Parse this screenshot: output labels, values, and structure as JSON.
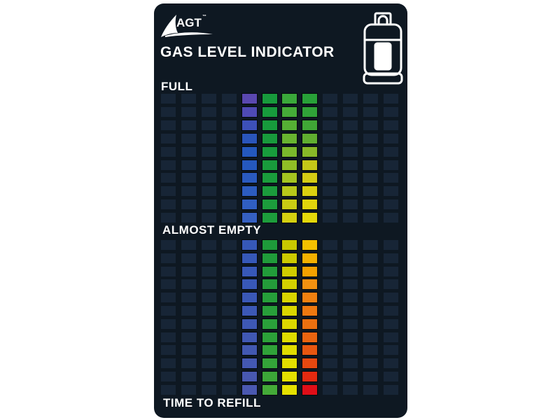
{
  "brand": {
    "name": "AGT",
    "trademark": "™"
  },
  "title": "GAS LEVEL INDICATOR",
  "labels": {
    "full": "FULL",
    "almost_empty": "ALMOST EMPTY",
    "time_to_refill": "TIME TO REFILL"
  },
  "icons": {
    "logo": "sail-logo",
    "cylinder": "gas-cylinder-icon"
  },
  "colors": {
    "card": "#0e1822",
    "empty_cell": "#172536",
    "text": "#ffffff"
  },
  "grid": {
    "columns": 12,
    "colored_columns": [
      5,
      6,
      7,
      8
    ],
    "upper_section": {
      "rows": 10,
      "column_colors": [
        [
          "#5a48b0",
          "#4f4ab5",
          "#3d50b8",
          "#2a55bb",
          "#2458bd",
          "#2558be",
          "#2a5abf",
          "#2c5cc0",
          "#305ec2",
          "#3560c2"
        ],
        [
          "#179a3c",
          "#179a3c",
          "#179a3c",
          "#189a3c",
          "#189b3c",
          "#199b3c",
          "#1a9c3c",
          "#1b9c3c",
          "#1c9c3c",
          "#1d9d3c"
        ],
        [
          "#3aa83a",
          "#45ac38",
          "#55b034",
          "#68b430",
          "#7ab82c",
          "#90be26",
          "#a4c420",
          "#b8c81a",
          "#c8cc14",
          "#d4d010"
        ],
        [
          "#28a038",
          "#30a238",
          "#40a636",
          "#60ae30",
          "#88b828",
          "#c4c818",
          "#d4cc14",
          "#dcd010",
          "#e0d40c",
          "#e4d80a"
        ]
      ]
    },
    "lower_section": {
      "rows": 12,
      "column_colors": [
        [
          "#3658b8",
          "#3658b8",
          "#3758b8",
          "#3858b8",
          "#3a58b6",
          "#3c58b6",
          "#3e58b4",
          "#4058b4",
          "#4258b2",
          "#4458b2",
          "#4858b0",
          "#4a58b0"
        ],
        [
          "#1e9a3a",
          "#209a3a",
          "#229c3a",
          "#249c3a",
          "#269e3a",
          "#289e3a",
          "#2aa03a",
          "#2ca039",
          "#30a239",
          "#34a439",
          "#3ca638",
          "#44aa38"
        ],
        [
          "#c8c800",
          "#ccca00",
          "#d0cc00",
          "#d4d000",
          "#d8d400",
          "#dad600",
          "#dcd800",
          "#dedb00",
          "#e0dc00",
          "#e2de00",
          "#e3df00",
          "#e4e000"
        ],
        [
          "#f4c000",
          "#f4b000",
          "#f4a000",
          "#f29010",
          "#f08010",
          "#ee7810",
          "#ec7010",
          "#ea6410",
          "#e85610",
          "#e64810",
          "#e42a10",
          "#e00e18"
        ]
      ]
    }
  }
}
